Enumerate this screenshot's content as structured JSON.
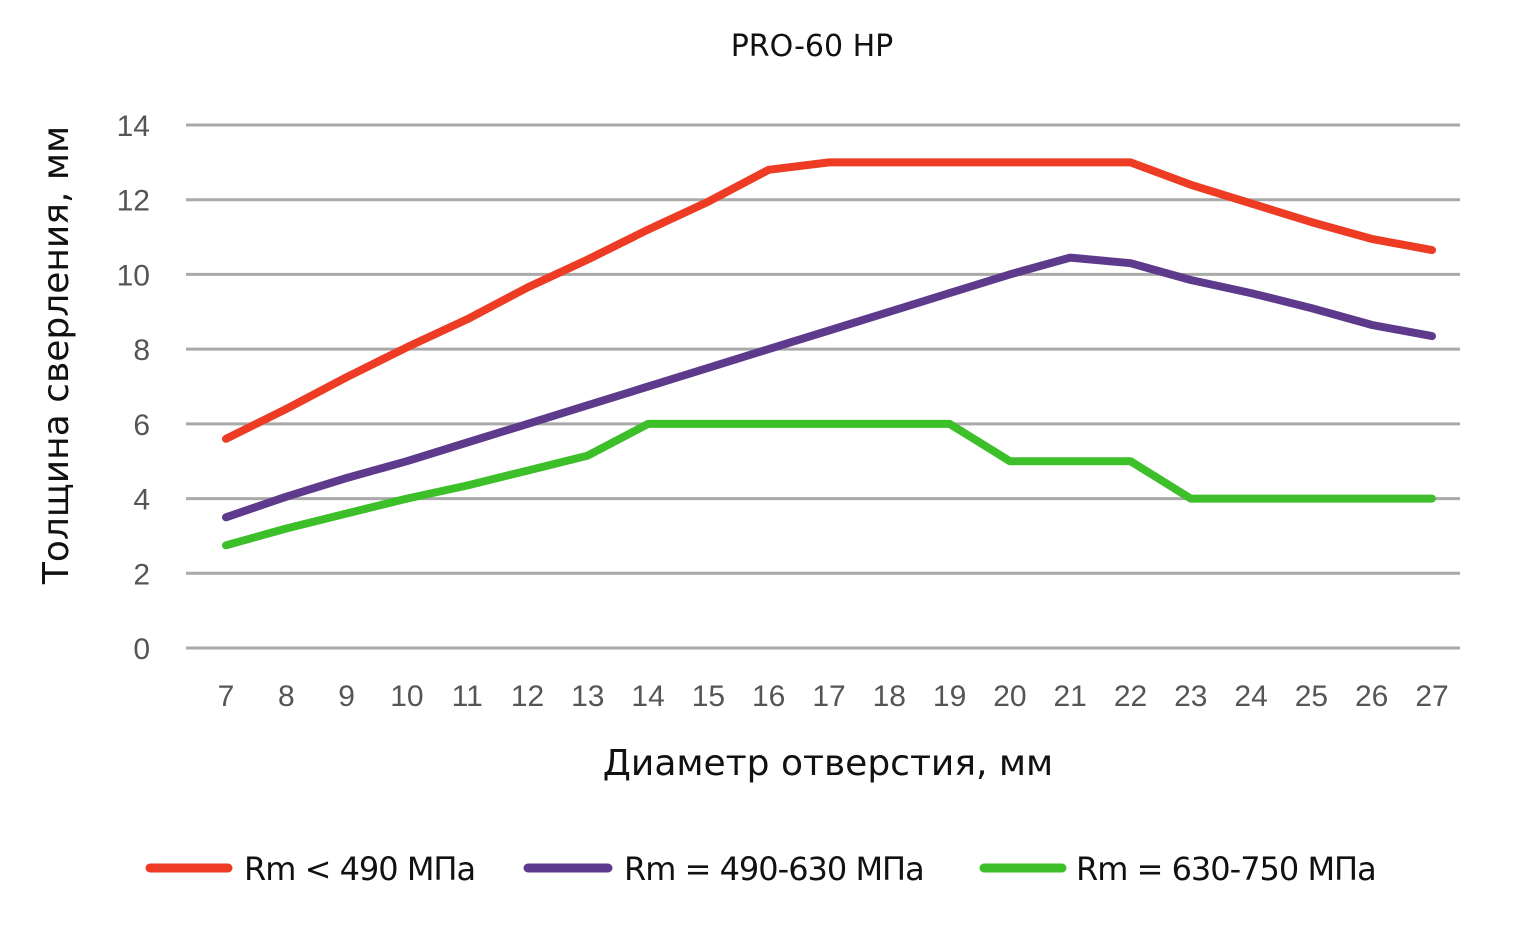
{
  "chart_data": {
    "type": "line",
    "title": "PRO-60 HP",
    "xlabel": "Диаметр отверстия, мм",
    "ylabel": "Толщина сверления, мм",
    "x": [
      7,
      8,
      9,
      10,
      11,
      12,
      13,
      14,
      15,
      16,
      17,
      18,
      19,
      20,
      21,
      22,
      23,
      24,
      25,
      26,
      27
    ],
    "ylim": [
      0,
      14
    ],
    "yticks": [
      0,
      2,
      4,
      6,
      8,
      10,
      12,
      14
    ],
    "grid": true,
    "legend_position": "bottom",
    "series": [
      {
        "name": "Rm < 490 МПа",
        "color": "#ee3b24",
        "values": [
          5.6,
          6.4,
          7.25,
          8.05,
          8.8,
          9.65,
          10.4,
          11.2,
          11.95,
          12.8,
          13.0,
          13.0,
          13.0,
          13.0,
          13.0,
          13.0,
          12.4,
          11.9,
          11.4,
          10.95,
          10.65
        ]
      },
      {
        "name": "Rm = 490-630 МПа",
        "color": "#5e3a8d",
        "values": [
          3.5,
          4.05,
          4.55,
          5.0,
          5.5,
          6.0,
          6.5,
          7.0,
          7.5,
          8.0,
          8.5,
          9.0,
          9.5,
          10.0,
          10.45,
          10.3,
          9.85,
          9.5,
          9.1,
          8.65,
          8.35
        ]
      },
      {
        "name": "Rm = 630-750 МПа",
        "color": "#3cbf29",
        "values": [
          2.75,
          3.2,
          3.6,
          4.0,
          4.35,
          4.75,
          5.15,
          6.0,
          6.0,
          6.0,
          6.0,
          6.0,
          6.0,
          5.0,
          5.0,
          5.0,
          4.0,
          4.0,
          4.0,
          4.0,
          4.0
        ]
      }
    ]
  }
}
